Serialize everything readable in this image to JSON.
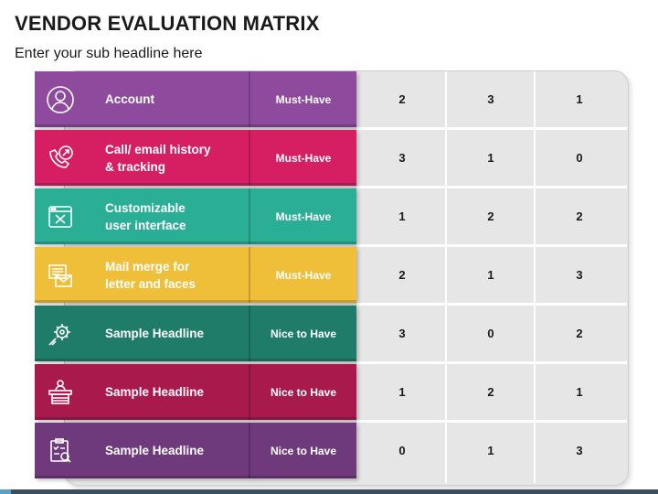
{
  "header": {
    "title": "VENDOR EVALUATION MATRIX",
    "subtitle": "Enter your sub headline here"
  },
  "rows": [
    {
      "label": "Account",
      "priority": "Must-Have",
      "scores": [
        "2",
        "3",
        "1"
      ],
      "color": "#8e4a9c",
      "icon": "user-icon"
    },
    {
      "label": "Call/ email history\n& tracking",
      "priority": "Must-Have",
      "scores": [
        "3",
        "1",
        "0"
      ],
      "color": "#d61f62",
      "icon": "phone-call-icon"
    },
    {
      "label": "Customizable\nuser interface",
      "priority": "Must-Have",
      "scores": [
        "1",
        "2",
        "2"
      ],
      "color": "#2bae96",
      "icon": "browser-window-icon"
    },
    {
      "label": "Mail merge for\nletter and faces",
      "priority": "Must-Have",
      "scores": [
        "2",
        "1",
        "3"
      ],
      "color": "#efbf3a",
      "icon": "mail-icon"
    },
    {
      "label": "Sample Headline",
      "priority": "Nice to Have",
      "scores": [
        "3",
        "0",
        "2"
      ],
      "color": "#1f7c69",
      "icon": "settings-icon"
    },
    {
      "label": "Sample Headline",
      "priority": "Nice to Have",
      "scores": [
        "1",
        "2",
        "1"
      ],
      "color": "#a81a4c",
      "icon": "desk-icon"
    },
    {
      "label": "Sample Headline",
      "priority": "Nice to Have",
      "scores": [
        "0",
        "1",
        "3"
      ],
      "color": "#6f3a7b",
      "icon": "checklist-icon"
    }
  ]
}
